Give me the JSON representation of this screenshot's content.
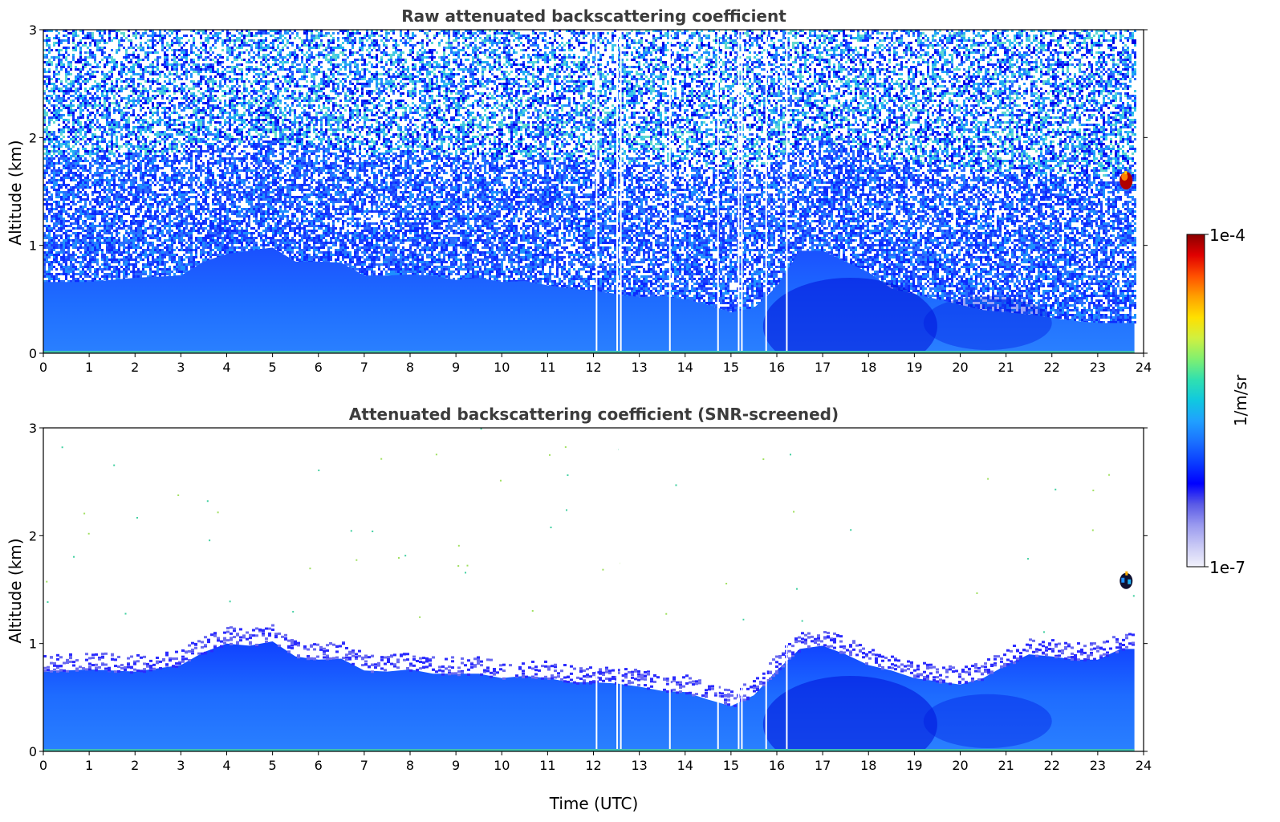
{
  "figure": {
    "colorbar": {
      "label": "1/m/sr",
      "max_label": "1e-4",
      "min_label": "1e-7",
      "vmin": 1e-07,
      "vmax": 0.0001,
      "scale": "log",
      "colormap": [
        "#f2f2fb",
        "#c8c8f5",
        "#9a9aef",
        "#5a5ae6",
        "#0000ff",
        "#0a3cff",
        "#1a70ff",
        "#20a0ff",
        "#10c8e0",
        "#30e0b0",
        "#80f070",
        "#d0f040",
        "#ffe000",
        "#ffa000",
        "#ff5000",
        "#e00000",
        "#8b0000"
      ]
    }
  },
  "chart_data": [
    {
      "type": "heatmap",
      "title": "Raw attenuated backscattering coefficient",
      "xlabel": "",
      "ylabel": "Altitude (km)",
      "xlim": [
        0,
        24
      ],
      "ylim": [
        0,
        3
      ],
      "xticks": [
        "0",
        "1",
        "2",
        "3",
        "4",
        "5",
        "6",
        "7",
        "8",
        "9",
        "10",
        "11",
        "12",
        "13",
        "14",
        "15",
        "16",
        "17",
        "18",
        "19",
        "20",
        "21",
        "22",
        "23",
        "24"
      ],
      "yticks": [
        "0",
        "1",
        "2",
        "3"
      ],
      "data_end_hour": 23.8,
      "boundary_layer_top_km": {
        "x": [
          0,
          1,
          2,
          3,
          3.5,
          4,
          4.5,
          5,
          5.5,
          6,
          6.5,
          7,
          7.5,
          8,
          8.5,
          9,
          9.5,
          10,
          10.5,
          11,
          11.5,
          12,
          12.5,
          13,
          13.5,
          14,
          14.5,
          15,
          15.5,
          16,
          16.5,
          17,
          17.5,
          18,
          18.5,
          19,
          19.5,
          20,
          20.5,
          21,
          21.5,
          22,
          22.5,
          23,
          23.5,
          23.8
        ],
        "y": [
          0.66,
          0.66,
          0.7,
          0.72,
          0.85,
          0.92,
          0.95,
          0.98,
          0.85,
          0.85,
          0.84,
          0.72,
          0.72,
          0.73,
          0.72,
          0.68,
          0.7,
          0.66,
          0.67,
          0.63,
          0.6,
          0.58,
          0.55,
          0.52,
          0.53,
          0.5,
          0.45,
          0.38,
          0.42,
          0.62,
          0.95,
          0.95,
          0.85,
          0.75,
          0.6,
          0.55,
          0.5,
          0.45,
          0.4,
          0.38,
          0.36,
          0.33,
          0.3,
          0.28,
          0.28,
          0.28
        ]
      },
      "gaps_hours": [
        12.05,
        12.5,
        12.58,
        13.65,
        14.7,
        15.15,
        15.22,
        15.75,
        16.2
      ],
      "cloud": {
        "time_hours": 23.62,
        "altitude_km": 1.6,
        "value": "1e-4"
      }
    },
    {
      "type": "heatmap",
      "title": "Attenuated backscattering coefficient (SNR-screened)",
      "xlabel": "Time (UTC)",
      "ylabel": "Altitude (km)",
      "xlim": [
        0,
        24
      ],
      "ylim": [
        0,
        3
      ],
      "xticks": [
        "0",
        "1",
        "2",
        "3",
        "4",
        "5",
        "6",
        "7",
        "8",
        "9",
        "10",
        "11",
        "12",
        "13",
        "14",
        "15",
        "16",
        "17",
        "18",
        "19",
        "20",
        "21",
        "22",
        "23",
        "24"
      ],
      "yticks": [
        "0",
        "1",
        "2",
        "3"
      ],
      "data_end_hour": 23.8,
      "boundary_layer_top_km": {
        "x": [
          0,
          1,
          2,
          3,
          3.5,
          4,
          4.5,
          5,
          5.5,
          6,
          6.5,
          7,
          7.5,
          8,
          8.5,
          9,
          9.5,
          10,
          10.5,
          11,
          11.5,
          12,
          12.5,
          13,
          13.5,
          14,
          14.5,
          15,
          15.5,
          16,
          16.5,
          17,
          17.5,
          18,
          18.5,
          19,
          19.5,
          20,
          20.5,
          21,
          21.5,
          22,
          22.5,
          23,
          23.5,
          23.8
        ],
        "y": [
          0.74,
          0.76,
          0.74,
          0.8,
          0.92,
          1.0,
          0.98,
          1.02,
          0.88,
          0.85,
          0.86,
          0.75,
          0.74,
          0.76,
          0.72,
          0.72,
          0.72,
          0.68,
          0.7,
          0.68,
          0.64,
          0.64,
          0.63,
          0.6,
          0.56,
          0.55,
          0.48,
          0.42,
          0.52,
          0.75,
          0.95,
          0.98,
          0.9,
          0.8,
          0.75,
          0.68,
          0.65,
          0.62,
          0.68,
          0.8,
          0.9,
          0.88,
          0.85,
          0.85,
          0.95,
          0.95
        ]
      },
      "gaps_hours": [
        12.05,
        12.5,
        12.58,
        13.65,
        14.7,
        15.15,
        15.22,
        15.75,
        16.2
      ],
      "cloud": {
        "time_hours": 23.62,
        "altitude_km": 1.58,
        "value": "mixed"
      }
    }
  ]
}
